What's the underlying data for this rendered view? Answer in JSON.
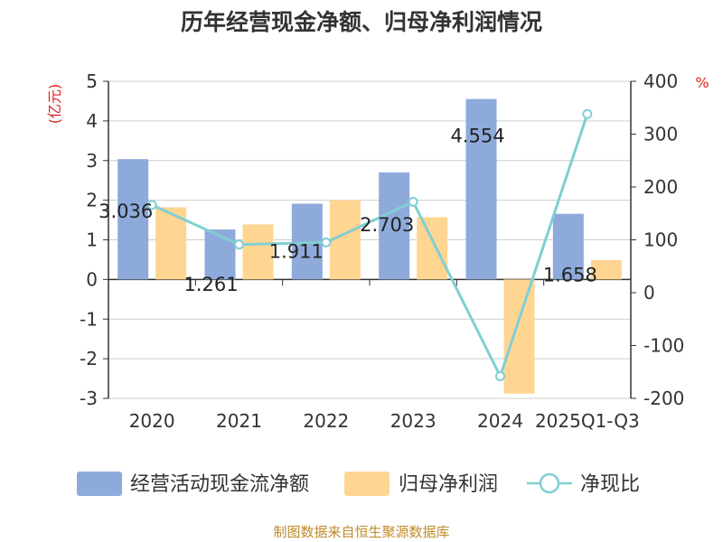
{
  "chart_data": {
    "type": "bar",
    "title": "历年经营现金净额、归母净利润情况",
    "categories": [
      "2020",
      "2021",
      "2022",
      "2023",
      "2024",
      "2025Q1-Q3"
    ],
    "series": [
      {
        "name": "经营活动现金流净额",
        "type": "bar",
        "axis": "left",
        "color": "#8eaadb",
        "values": [
          3.036,
          1.261,
          1.911,
          2.703,
          4.554,
          1.658
        ],
        "labels": [
          "3.036",
          "1.261",
          "1.911",
          "2.703",
          "4.554",
          "1.658"
        ]
      },
      {
        "name": "归母净利润",
        "type": "bar",
        "axis": "left",
        "color": "#ffd592",
        "values": [
          1.82,
          1.39,
          2.0,
          1.57,
          -2.88,
          0.49
        ]
      },
      {
        "name": "净现比",
        "type": "line",
        "axis": "right",
        "color": "#7fcfd4",
        "values": [
          166,
          91,
          95,
          172,
          -158,
          338
        ]
      }
    ],
    "y_left": {
      "unit": "(亿元)",
      "min": -3,
      "max": 5,
      "ticks": [
        5,
        4,
        3,
        2,
        1,
        0,
        -1,
        -2,
        -3
      ]
    },
    "y_right": {
      "unit": "%",
      "min": -200,
      "max": 400,
      "ticks": [
        400,
        300,
        200,
        100,
        0,
        -100,
        -200
      ]
    },
    "grid": true,
    "legend_position": "bottom"
  },
  "source_note": "制图数据来自恒生聚源数据库"
}
